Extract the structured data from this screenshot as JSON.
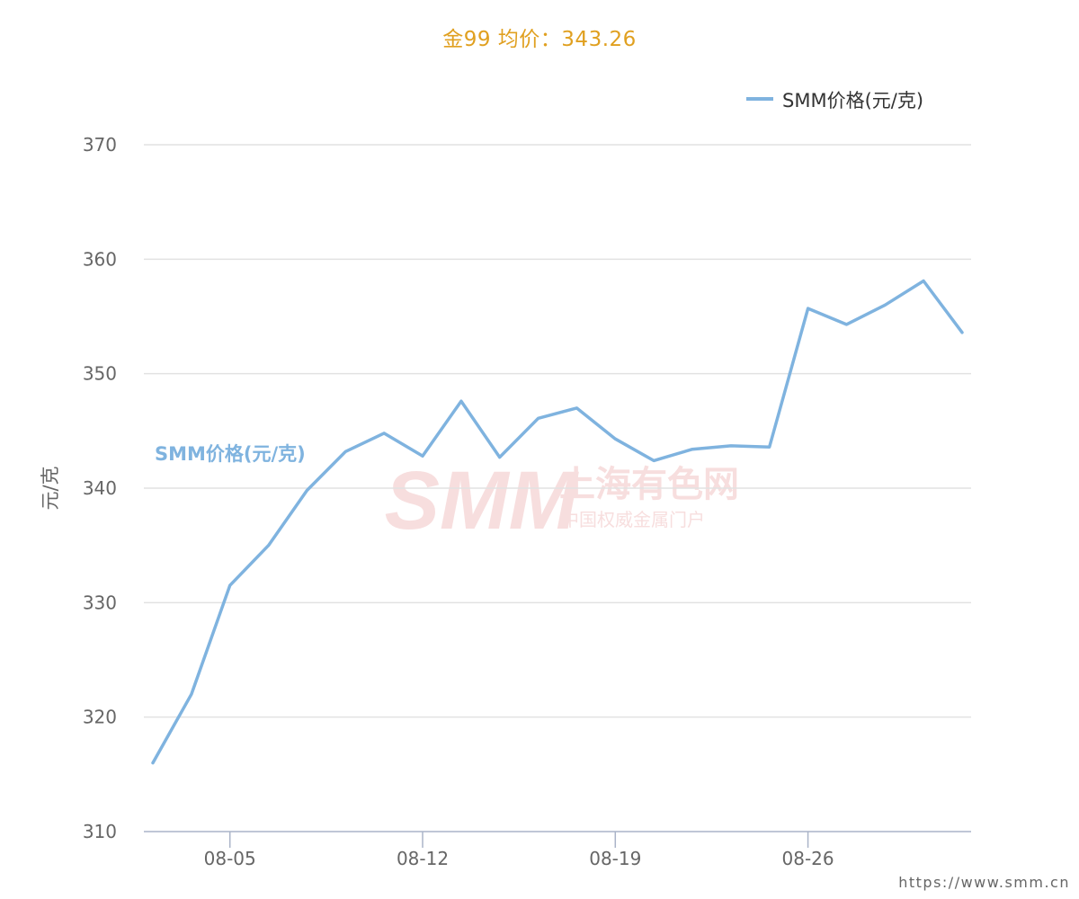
{
  "header": {
    "title": "金99 均价：343.26"
  },
  "watermark": {
    "logo_text": "SMM",
    "name_cn": "上海有色网",
    "slogan_cn": "中国权威金属门户"
  },
  "footer": {
    "url": "https://www.smm.cn"
  },
  "colors": {
    "series": "#7fb3df",
    "title": "#e0a020",
    "grid": "#dddddd",
    "watermark": "#f2c4c4"
  },
  "chart_data": {
    "type": "line",
    "title": "金99 均价：343.26",
    "ylabel": "元/克",
    "ylim": [
      310,
      370
    ],
    "yticks": [
      310,
      320,
      330,
      340,
      350,
      360,
      370
    ],
    "xticks": [
      "08-05",
      "08-12",
      "08-19",
      "08-26"
    ],
    "legend": {
      "position": "top-right",
      "entries": [
        "SMM价格(元/克)"
      ]
    },
    "series_label": "SMM价格(元/克)",
    "grid": true,
    "series": [
      {
        "name": "SMM价格(元/克)",
        "x": [
          "08-01",
          "08-02",
          "08-05",
          "08-06",
          "08-07",
          "08-08",
          "08-09",
          "08-12",
          "08-13",
          "08-14",
          "08-15",
          "08-16",
          "08-19",
          "08-20",
          "08-21",
          "08-22",
          "08-23",
          "08-26",
          "08-27",
          "08-28",
          "08-29",
          "08-30"
        ],
        "values": [
          316.0,
          322.0,
          331.5,
          335.0,
          339.8,
          343.2,
          344.8,
          342.8,
          347.6,
          342.7,
          346.1,
          347.0,
          344.3,
          342.4,
          343.4,
          343.7,
          343.6,
          355.7,
          354.3,
          356.0,
          358.1,
          353.6
        ]
      }
    ]
  }
}
